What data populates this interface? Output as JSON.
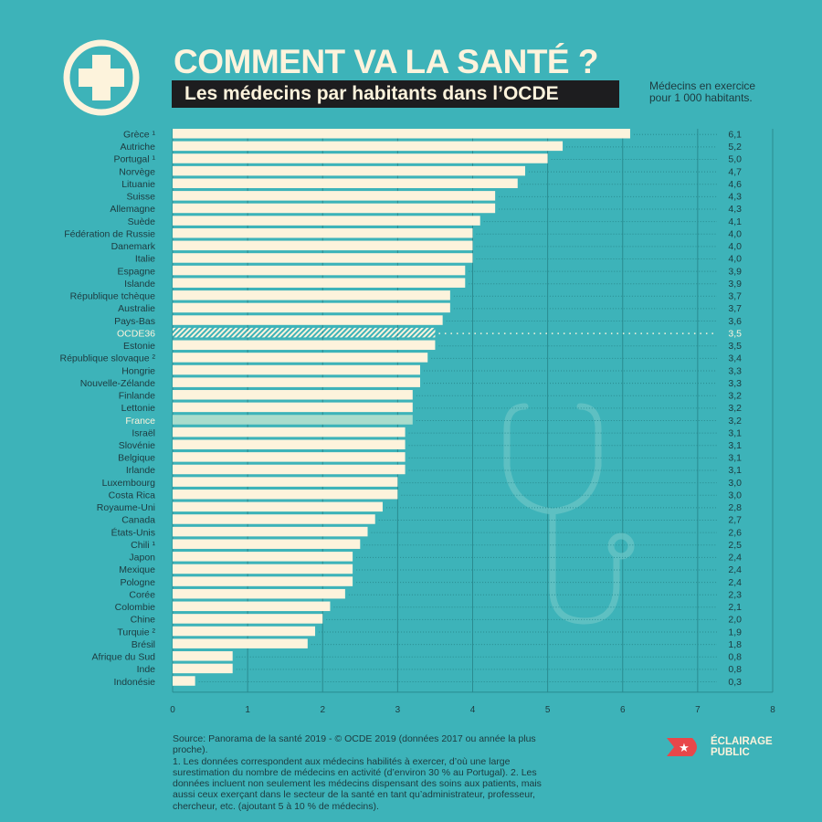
{
  "header": {
    "title": "COMMENT VA LA SANTÉ ?",
    "subtitle": "Les médecins par habitants dans l’OCDE",
    "unit_line1": "Médecins en exercice",
    "unit_line2": "pour 1 000 habitants."
  },
  "colors": {
    "background": "#3db3b9",
    "bar": "#fdf3dc",
    "highlight": "#a9dccc",
    "grid": "#2a8b90",
    "label": "#1d3a3f",
    "brand_red": "#e8474a"
  },
  "chart_data": {
    "type": "bar",
    "orientation": "horizontal",
    "title": "Les médecins par habitants dans l’OCDE",
    "xlabel": "",
    "ylabel": "",
    "xlim": [
      0,
      8
    ],
    "xticks": [
      "0",
      "1",
      "2",
      "3",
      "4",
      "5",
      "6",
      "7",
      "8"
    ],
    "grid": "vertical",
    "categories": [
      "Grèce ¹",
      "Autriche",
      "Portugal ¹",
      "Norvège",
      "Lituanie",
      "Suisse",
      "Allemagne",
      "Suède",
      "Fédération de Russie",
      "Danemark",
      "Italie",
      "Espagne",
      "Islande",
      "République tchèque",
      "Australie",
      "Pays-Bas",
      "OCDE36",
      "Estonie",
      "République slovaque ²",
      "Hongrie",
      "Nouvelle-Zélande",
      "Finlande",
      "Lettonie",
      "France",
      "Israël",
      "Slovénie",
      "Belgique",
      "Irlande",
      "Luxembourg",
      "Costa Rica",
      "Royaume-Uni",
      "Canada",
      "États-Unis",
      "Chili ¹",
      "Japon",
      "Mexique",
      "Pologne",
      "Corée",
      "Colombie",
      "Chine",
      "Turquie ²",
      "Brésil",
      "Afrique du Sud",
      "Inde",
      "Indonésie"
    ],
    "values": [
      6.1,
      5.2,
      5.0,
      4.7,
      4.6,
      4.3,
      4.3,
      4.1,
      4.0,
      4.0,
      4.0,
      3.9,
      3.9,
      3.7,
      3.7,
      3.6,
      3.5,
      3.5,
      3.4,
      3.3,
      3.3,
      3.2,
      3.2,
      3.2,
      3.1,
      3.1,
      3.1,
      3.1,
      3.0,
      3.0,
      2.8,
      2.7,
      2.6,
      2.5,
      2.4,
      2.4,
      2.4,
      2.3,
      2.1,
      2.0,
      1.9,
      1.8,
      0.8,
      0.8,
      0.3
    ],
    "value_labels": [
      "6,1",
      "5,2",
      "5,0",
      "4,7",
      "4,6",
      "4,3",
      "4,3",
      "4,1",
      "4,0",
      "4,0",
      "4,0",
      "3,9",
      "3,9",
      "3,7",
      "3,7",
      "3,6",
      "3,5",
      "3,5",
      "3,4",
      "3,3",
      "3,3",
      "3,2",
      "3,2",
      "3,2",
      "3,1",
      "3,1",
      "3,1",
      "3,1",
      "3,0",
      "3,0",
      "2,8",
      "2,7",
      "2,6",
      "2,5",
      "2,4",
      "2,4",
      "2,4",
      "2,3",
      "2,1",
      "2,0",
      "1,9",
      "1,8",
      "0,8",
      "0,8",
      "0,3"
    ],
    "average_category": "OCDE36",
    "highlight_category": "France"
  },
  "footer": {
    "lines": [
      "Source: Panorama de la santé 2019 - © OCDE 2019 (données 2017 ou année la plus proche).",
      "1. Les données correspondent aux médecins habilités à exercer, d’où une large surestimation du nombre de médecins en activité (d’environ 30 % au Portugal). 2.  Les données incluent non seulement les médecins dispensant des soins aux patients, mais aussi ceux exerçant dans le secteur de la santé en tant qu’administrateur, professeur, chercheur, etc. (ajoutant 5 à 10 % de médecins)."
    ]
  },
  "brand": {
    "line1": "ÉCLAIRAGE",
    "line2": "PUBLIC"
  }
}
